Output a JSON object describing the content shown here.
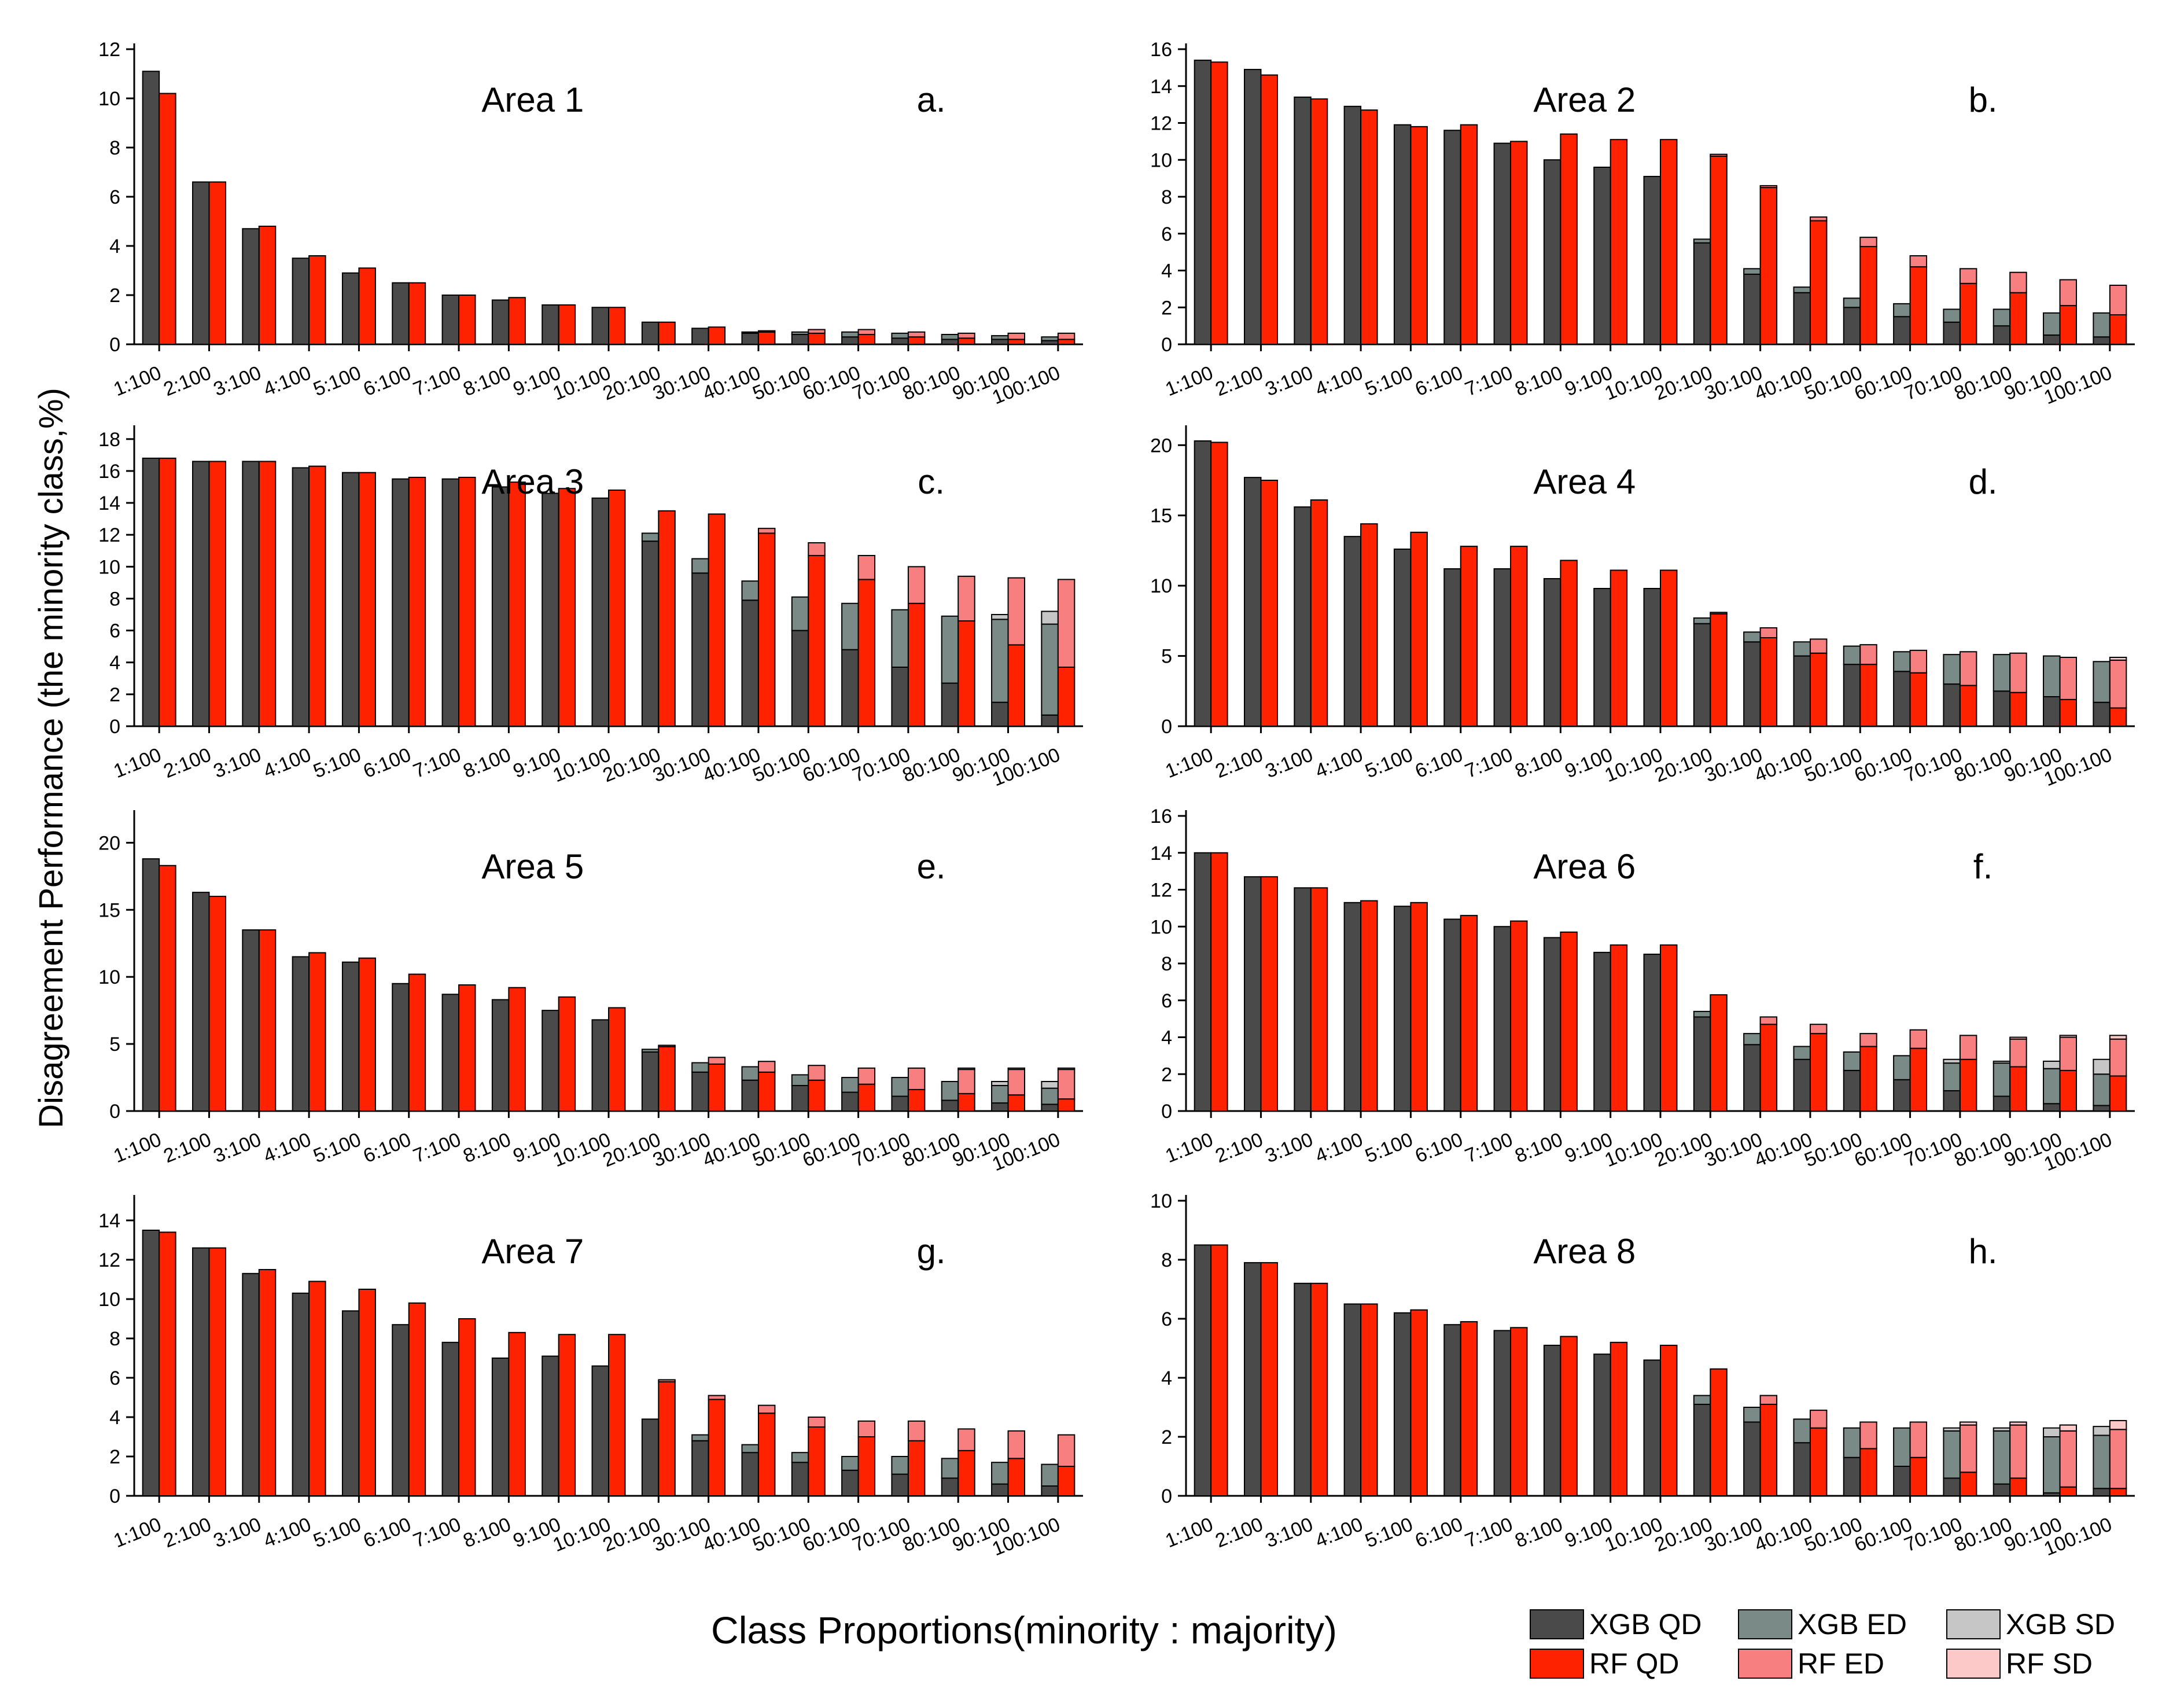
{
  "chart_data": {
    "type": "bar",
    "subtype": "stacked-bar (grouped XGB vs RF)",
    "categories": [
      "1:100",
      "2:100",
      "3:100",
      "4:100",
      "5:100",
      "6:100",
      "7:100",
      "8:100",
      "9:100",
      "10:100",
      "20:100",
      "30:100",
      "40:100",
      "50:100",
      "60:100",
      "70:100",
      "80:100",
      "90:100",
      "100:100"
    ],
    "xlabel": "Class Proportions(minority : majority)",
    "ylabel": "Disagreement Performance (the minority class,%)",
    "colors": {
      "xgb_qd": "#4a4a4a",
      "xgb_ed": "#7a8a86",
      "xgb_sd": "#c6c6c6",
      "rf_qd": "#ff2200",
      "rf_ed": "#f77f7f",
      "rf_sd": "#fcc8c8"
    },
    "legend": {
      "placement": "bottom-right",
      "entries": [
        {
          "key": "xgb_qd",
          "label": "XGB QD"
        },
        {
          "key": "xgb_ed",
          "label": "XGB ED"
        },
        {
          "key": "xgb_sd",
          "label": "XGB SD"
        },
        {
          "key": "rf_qd",
          "label": "RF    QD"
        },
        {
          "key": "rf_ed",
          "label": "RF     ED"
        },
        {
          "key": "rf_sd",
          "label": "RF     SD"
        }
      ]
    },
    "panels": [
      {
        "title": "Area 1",
        "letter": "a.",
        "ylim": [
          0,
          12
        ],
        "yticks": [
          0,
          2,
          4,
          6,
          8,
          10,
          12
        ],
        "xgb": {
          "qd": [
            11.1,
            6.6,
            4.7,
            3.5,
            2.9,
            2.5,
            2.0,
            1.8,
            1.6,
            1.5,
            0.9,
            0.65,
            0.45,
            0.4,
            0.3,
            0.25,
            0.2,
            0.2,
            0.15
          ],
          "ed": [
            0,
            0,
            0,
            0,
            0,
            0,
            0,
            0,
            0,
            0,
            0,
            0,
            0.05,
            0.1,
            0.2,
            0.2,
            0.2,
            0.15,
            0.15
          ],
          "sd": [
            0,
            0,
            0,
            0,
            0,
            0,
            0,
            0,
            0,
            0,
            0,
            0,
            0,
            0,
            0,
            0,
            0,
            0,
            0
          ]
        },
        "rf": {
          "qd": [
            10.2,
            6.6,
            4.8,
            3.6,
            3.1,
            2.5,
            2.0,
            1.9,
            1.6,
            1.5,
            0.9,
            0.7,
            0.5,
            0.45,
            0.4,
            0.3,
            0.25,
            0.2,
            0.2
          ],
          "ed": [
            0,
            0,
            0,
            0,
            0,
            0,
            0,
            0,
            0,
            0,
            0,
            0,
            0.05,
            0.15,
            0.2,
            0.2,
            0.2,
            0.25,
            0.25
          ],
          "sd": [
            0,
            0,
            0,
            0,
            0,
            0,
            0,
            0,
            0,
            0,
            0,
            0,
            0,
            0,
            0,
            0,
            0,
            0,
            0
          ]
        }
      },
      {
        "title": "Area 2",
        "letter": "b.",
        "ylim": [
          0,
          16
        ],
        "yticks": [
          0,
          2,
          4,
          6,
          8,
          10,
          12,
          14,
          16
        ],
        "xgb": {
          "qd": [
            15.4,
            14.9,
            13.4,
            12.9,
            11.9,
            11.6,
            10.9,
            10.0,
            9.6,
            9.1,
            5.5,
            3.8,
            2.8,
            2.0,
            1.5,
            1.2,
            1.0,
            0.5,
            0.4
          ],
          "ed": [
            0,
            0,
            0,
            0,
            0,
            0,
            0,
            0,
            0,
            0,
            0.2,
            0.3,
            0.3,
            0.5,
            0.7,
            0.7,
            0.9,
            1.2,
            1.3
          ],
          "sd": [
            0,
            0,
            0,
            0,
            0,
            0,
            0,
            0,
            0,
            0,
            0,
            0,
            0,
            0,
            0,
            0,
            0,
            0,
            0
          ]
        },
        "rf": {
          "qd": [
            15.3,
            14.6,
            13.3,
            12.7,
            11.8,
            11.9,
            11.0,
            11.4,
            11.1,
            11.1,
            10.2,
            8.5,
            6.7,
            5.3,
            4.2,
            3.3,
            2.8,
            2.1,
            1.6
          ],
          "ed": [
            0,
            0,
            0,
            0,
            0,
            0,
            0,
            0,
            0,
            0,
            0.1,
            0.1,
            0.2,
            0.5,
            0.6,
            0.8,
            1.1,
            1.4,
            1.6
          ],
          "sd": [
            0,
            0,
            0,
            0,
            0,
            0,
            0,
            0,
            0,
            0,
            0,
            0,
            0,
            0,
            0,
            0,
            0,
            0,
            0
          ]
        }
      },
      {
        "title": "Area 3",
        "letter": "c.",
        "ylim": [
          0,
          18.5
        ],
        "yticks": [
          0,
          2,
          4,
          6,
          8,
          10,
          12,
          14,
          16,
          18
        ],
        "xgb": {
          "qd": [
            16.8,
            16.6,
            16.6,
            16.2,
            15.9,
            15.5,
            15.5,
            15.0,
            14.6,
            14.3,
            11.6,
            9.6,
            7.9,
            6.0,
            4.8,
            3.7,
            2.7,
            1.5,
            0.7
          ],
          "ed": [
            0,
            0,
            0,
            0,
            0,
            0,
            0,
            0,
            0,
            0,
            0.5,
            0.9,
            1.2,
            2.1,
            2.9,
            3.6,
            4.2,
            5.2,
            5.7
          ],
          "sd": [
            0,
            0,
            0,
            0,
            0,
            0,
            0,
            0,
            0,
            0,
            0,
            0,
            0,
            0,
            0,
            0,
            0,
            0.3,
            0.8
          ]
        },
        "rf": {
          "qd": [
            16.8,
            16.6,
            16.6,
            16.3,
            15.9,
            15.6,
            15.6,
            15.3,
            14.9,
            14.8,
            13.5,
            13.3,
            12.1,
            10.7,
            9.2,
            7.7,
            6.6,
            5.1,
            3.7
          ],
          "ed": [
            0,
            0,
            0,
            0,
            0,
            0,
            0,
            0,
            0,
            0,
            0,
            0,
            0.3,
            0.8,
            1.5,
            2.3,
            2.8,
            4.2,
            5.5
          ],
          "sd": [
            0,
            0,
            0,
            0,
            0,
            0,
            0,
            0,
            0,
            0,
            0,
            0,
            0,
            0,
            0,
            0,
            0,
            0,
            0
          ]
        }
      },
      {
        "title": "Area 4",
        "letter": "d.",
        "ylim": [
          0,
          21
        ],
        "yticks": [
          0,
          5,
          10,
          15,
          20
        ],
        "xgb": {
          "qd": [
            20.3,
            17.7,
            15.6,
            13.5,
            12.6,
            11.2,
            11.2,
            10.5,
            9.8,
            9.8,
            7.3,
            6.0,
            5.0,
            4.4,
            3.9,
            3.0,
            2.5,
            2.1,
            1.7
          ],
          "ed": [
            0,
            0,
            0,
            0,
            0,
            0,
            0,
            0,
            0,
            0,
            0.4,
            0.7,
            1.0,
            1.3,
            1.4,
            2.1,
            2.6,
            2.9,
            2.9
          ],
          "sd": [
            0,
            0,
            0,
            0,
            0,
            0,
            0,
            0,
            0,
            0,
            0,
            0,
            0,
            0,
            0,
            0,
            0,
            0,
            0
          ]
        },
        "rf": {
          "qd": [
            20.2,
            17.5,
            16.1,
            14.4,
            13.8,
            12.8,
            12.8,
            11.8,
            11.1,
            11.1,
            8.0,
            6.3,
            5.2,
            4.4,
            3.8,
            2.9,
            2.4,
            1.9,
            1.3
          ],
          "ed": [
            0,
            0,
            0,
            0,
            0,
            0,
            0,
            0,
            0,
            0,
            0.1,
            0.7,
            1.0,
            1.4,
            1.6,
            2.4,
            2.8,
            3.0,
            3.4
          ],
          "sd": [
            0,
            0,
            0,
            0,
            0,
            0,
            0,
            0,
            0,
            0,
            0,
            0,
            0,
            0,
            0,
            0,
            0,
            0,
            0.2
          ]
        }
      },
      {
        "title": "Area 5",
        "letter": "e.",
        "ylim": [
          0,
          22
        ],
        "yticks": [
          0,
          5,
          10,
          15,
          20
        ],
        "xgb": {
          "qd": [
            18.8,
            16.3,
            13.5,
            11.5,
            11.1,
            9.5,
            8.7,
            8.3,
            7.5,
            6.8,
            4.4,
            2.9,
            2.3,
            1.9,
            1.4,
            1.1,
            0.8,
            0.6,
            0.5
          ],
          "ed": [
            0,
            0,
            0,
            0,
            0,
            0,
            0,
            0,
            0,
            0,
            0.2,
            0.7,
            1.0,
            0.8,
            1.1,
            1.4,
            1.4,
            1.3,
            1.2
          ],
          "sd": [
            0,
            0,
            0,
            0,
            0,
            0,
            0,
            0,
            0,
            0,
            0,
            0,
            0,
            0,
            0,
            0,
            0,
            0.3,
            0.5
          ]
        },
        "rf": {
          "qd": [
            18.3,
            16.0,
            13.5,
            11.8,
            11.4,
            10.2,
            9.4,
            9.2,
            8.5,
            7.7,
            4.8,
            3.5,
            2.9,
            2.3,
            2.0,
            1.6,
            1.3,
            1.2,
            0.9
          ],
          "ed": [
            0,
            0,
            0,
            0,
            0,
            0,
            0,
            0,
            0,
            0,
            0.1,
            0.5,
            0.8,
            1.1,
            1.2,
            1.6,
            1.8,
            1.9,
            2.2
          ],
          "sd": [
            0,
            0,
            0,
            0,
            0,
            0,
            0,
            0,
            0,
            0,
            0,
            0,
            0,
            0,
            0,
            0,
            0.1,
            0.1,
            0.1
          ]
        }
      },
      {
        "title": "Area 6",
        "letter": "f.",
        "ylim": [
          0,
          16
        ],
        "yticks": [
          0,
          2,
          4,
          6,
          8,
          10,
          12,
          14,
          16
        ],
        "xgb": {
          "qd": [
            14.0,
            12.7,
            12.1,
            11.3,
            11.1,
            10.4,
            10.0,
            9.4,
            8.6,
            8.5,
            5.1,
            3.6,
            2.8,
            2.2,
            1.7,
            1.1,
            0.8,
            0.4,
            0.3
          ],
          "ed": [
            0,
            0,
            0,
            0,
            0,
            0,
            0,
            0,
            0,
            0,
            0.3,
            0.6,
            0.7,
            1.0,
            1.3,
            1.5,
            1.8,
            1.9,
            1.7
          ],
          "sd": [
            0,
            0,
            0,
            0,
            0,
            0,
            0,
            0,
            0,
            0,
            0,
            0,
            0,
            0,
            0,
            0.2,
            0.1,
            0.4,
            0.8
          ]
        },
        "rf": {
          "qd": [
            14.0,
            12.7,
            12.1,
            11.4,
            11.3,
            10.6,
            10.3,
            9.7,
            9.0,
            9.0,
            6.3,
            4.7,
            4.2,
            3.5,
            3.4,
            2.8,
            2.4,
            2.2,
            1.9
          ],
          "ed": [
            0,
            0,
            0,
            0,
            0,
            0,
            0,
            0,
            0,
            0,
            0,
            0.4,
            0.5,
            0.7,
            1.0,
            1.3,
            1.5,
            1.8,
            2.0
          ],
          "sd": [
            0,
            0,
            0,
            0,
            0,
            0,
            0,
            0,
            0,
            0,
            0,
            0,
            0,
            0,
            0,
            0,
            0.1,
            0.1,
            0.2
          ]
        }
      },
      {
        "title": "Area 7",
        "letter": "g.",
        "ylim": [
          0,
          15
        ],
        "yticks": [
          0,
          2,
          4,
          6,
          8,
          10,
          12,
          14
        ],
        "xgb": {
          "qd": [
            13.5,
            12.6,
            11.3,
            10.3,
            9.4,
            8.7,
            7.8,
            7.0,
            7.1,
            6.6,
            3.9,
            2.8,
            2.2,
            1.7,
            1.3,
            1.1,
            0.9,
            0.6,
            0.5
          ],
          "ed": [
            0,
            0,
            0,
            0,
            0,
            0,
            0,
            0,
            0,
            0,
            0,
            0.3,
            0.4,
            0.5,
            0.7,
            0.9,
            1.0,
            1.1,
            1.1
          ],
          "sd": [
            0,
            0,
            0,
            0,
            0,
            0,
            0,
            0,
            0,
            0,
            0,
            0,
            0,
            0,
            0,
            0,
            0,
            0,
            0
          ]
        },
        "rf": {
          "qd": [
            13.4,
            12.6,
            11.5,
            10.9,
            10.5,
            9.8,
            9.0,
            8.3,
            8.2,
            8.2,
            5.8,
            4.9,
            4.2,
            3.5,
            3.0,
            2.8,
            2.3,
            1.9,
            1.5
          ],
          "ed": [
            0,
            0,
            0,
            0,
            0,
            0,
            0,
            0,
            0,
            0,
            0.1,
            0.2,
            0.4,
            0.5,
            0.8,
            1.0,
            1.1,
            1.4,
            1.6
          ],
          "sd": [
            0,
            0,
            0,
            0,
            0,
            0,
            0,
            0,
            0,
            0,
            0,
            0,
            0,
            0,
            0,
            0,
            0,
            0,
            0
          ]
        }
      },
      {
        "title": "Area 8",
        "letter": "h.",
        "ylim": [
          0,
          10
        ],
        "yticks": [
          0,
          2,
          4,
          6,
          8,
          10
        ],
        "xgb": {
          "qd": [
            8.5,
            7.9,
            7.2,
            6.5,
            6.2,
            5.8,
            5.6,
            5.1,
            4.8,
            4.6,
            3.1,
            2.5,
            1.8,
            1.3,
            1.0,
            0.6,
            0.4,
            0.1,
            0.25
          ],
          "ed": [
            0,
            0,
            0,
            0,
            0,
            0,
            0,
            0,
            0,
            0,
            0.3,
            0.5,
            0.8,
            1.0,
            1.3,
            1.6,
            1.8,
            1.9,
            1.8
          ],
          "sd": [
            0,
            0,
            0,
            0,
            0,
            0,
            0,
            0,
            0,
            0,
            0,
            0,
            0,
            0,
            0,
            0.1,
            0.1,
            0.3,
            0.3
          ]
        },
        "rf": {
          "qd": [
            8.5,
            7.9,
            7.2,
            6.5,
            6.3,
            5.9,
            5.7,
            5.4,
            5.2,
            5.1,
            4.3,
            3.1,
            2.3,
            1.6,
            1.3,
            0.8,
            0.6,
            0.3,
            0.25
          ],
          "ed": [
            0,
            0,
            0,
            0,
            0,
            0,
            0,
            0,
            0,
            0,
            0,
            0.3,
            0.6,
            0.9,
            1.2,
            1.6,
            1.8,
            1.9,
            2.0
          ],
          "sd": [
            0,
            0,
            0,
            0,
            0,
            0,
            0,
            0,
            0,
            0,
            0,
            0,
            0,
            0,
            0,
            0.1,
            0.1,
            0.2,
            0.3
          ]
        }
      }
    ]
  }
}
